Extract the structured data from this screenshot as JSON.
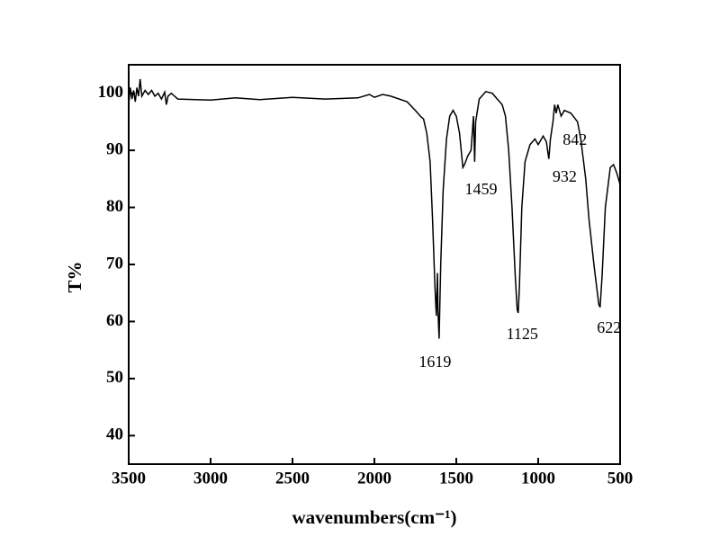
{
  "chart_data": {
    "type": "line",
    "xlabel": "wavenumbers(cm⁻¹)",
    "ylabel": "T%",
    "xlim": [
      3500,
      500
    ],
    "ylim": [
      35,
      105
    ],
    "xticks": [
      3500,
      3000,
      2500,
      2000,
      1500,
      1000,
      500
    ],
    "yticks": [
      40,
      50,
      60,
      70,
      80,
      90,
      100
    ],
    "annotations": [
      "1619",
      "1459",
      "1125",
      "932",
      "842",
      "622"
    ],
    "series": [
      {
        "color": "#000000",
        "x": [
          3500,
          3490,
          3480,
          3470,
          3460,
          3450,
          3440,
          3430,
          3420,
          3400,
          3380,
          3360,
          3340,
          3320,
          3300,
          3280,
          3270,
          3260,
          3240,
          3220,
          3200,
          3000,
          2850,
          2700,
          2500,
          2300,
          2100,
          2030,
          2000,
          1950,
          1900,
          1800,
          1750,
          1720,
          1700,
          1680,
          1660,
          1645,
          1630,
          1622,
          1615,
          1612,
          1605,
          1595,
          1580,
          1560,
          1540,
          1520,
          1500,
          1480,
          1460,
          1450,
          1430,
          1410,
          1395,
          1388,
          1382,
          1360,
          1320,
          1280,
          1250,
          1220,
          1200,
          1180,
          1160,
          1140,
          1128,
          1122,
          1115,
          1100,
          1080,
          1050,
          1020,
          1000,
          970,
          950,
          935,
          925,
          910,
          900,
          890,
          880,
          860,
          840,
          800,
          760,
          740,
          710,
          690,
          660,
          630,
          622,
          610,
          590,
          560,
          540,
          520,
          500
        ],
        "values": [
          98,
          101,
          99,
          100.5,
          98.5,
          101,
          99.5,
          102.5,
          99.5,
          100.5,
          99.8,
          100.5,
          99.5,
          100,
          99,
          100.2,
          98,
          99.5,
          100,
          99.5,
          99,
          98.8,
          99.2,
          98.9,
          99.3,
          99,
          99.2,
          99.8,
          99.3,
          99.8,
          99.5,
          98.5,
          97,
          96,
          95.5,
          93,
          88,
          78,
          66,
          61,
          68.5,
          62,
          57,
          70,
          83,
          92,
          96,
          97,
          96,
          93,
          87,
          87.5,
          89,
          90,
          96,
          88,
          95,
          99,
          100.3,
          100,
          99,
          98,
          96,
          90,
          80,
          68,
          62,
          61.5,
          66,
          80,
          88,
          91,
          92,
          91,
          92.5,
          91.5,
          88.5,
          92,
          95,
          98,
          96.5,
          98,
          96,
          97,
          96.5,
          95,
          92,
          85,
          78,
          70,
          63,
          62.5,
          68,
          80,
          87,
          87.5,
          86,
          84
        ]
      }
    ]
  }
}
